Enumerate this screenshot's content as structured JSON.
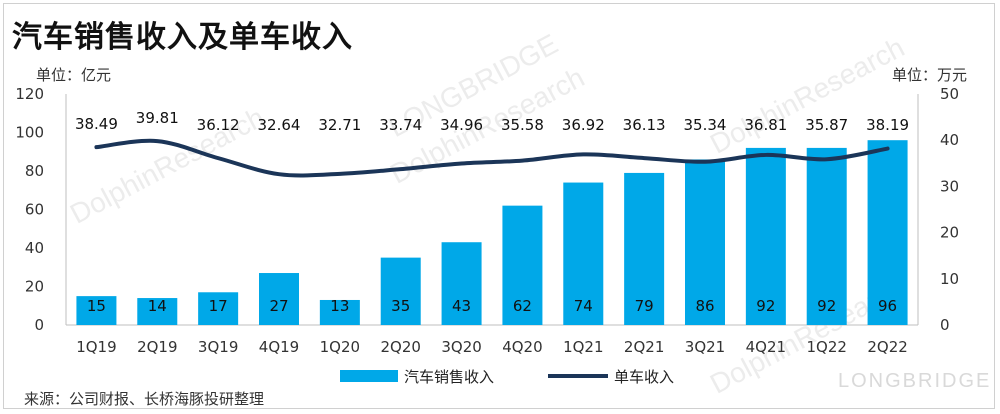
{
  "title": "汽车销售收入及单车收入",
  "source": "来源：公司财报、长桥海豚投研整理",
  "watermark": "LONGBRIDGE",
  "watermark_tiles": [
    "DolphinResearch",
    "LONGBRIDGE"
  ],
  "colors": {
    "bar": "#00a8e8",
    "line": "#1b3558",
    "axis": "#bfbfbf"
  },
  "chart_data": {
    "type": "bar",
    "categories": [
      "1Q19",
      "2Q19",
      "3Q19",
      "4Q19",
      "1Q20",
      "2Q20",
      "3Q20",
      "4Q20",
      "1Q21",
      "2Q21",
      "3Q21",
      "4Q21",
      "1Q22",
      "2Q22"
    ],
    "series": [
      {
        "name": "汽车销售收入",
        "type": "bar",
        "axis": "left",
        "values": [
          15,
          14,
          17,
          27,
          13,
          35,
          43,
          62,
          74,
          79,
          86,
          92,
          92,
          96
        ]
      },
      {
        "name": "单车收入",
        "type": "line",
        "axis": "right",
        "values": [
          38.49,
          39.81,
          36.12,
          32.64,
          32.71,
          33.74,
          34.96,
          35.58,
          36.92,
          36.13,
          35.34,
          36.81,
          35.87,
          38.19
        ]
      }
    ],
    "ylabel_left": "单位：亿元",
    "ylabel_right": "单位：万元",
    "ylim_left": [
      0,
      120
    ],
    "ylim_right": [
      0,
      50
    ],
    "yticks_left": [
      0,
      20,
      40,
      60,
      80,
      100,
      120
    ],
    "yticks_right": [
      0,
      10,
      20,
      30,
      40,
      50
    ],
    "grid": false,
    "legend_position": "bottom"
  }
}
